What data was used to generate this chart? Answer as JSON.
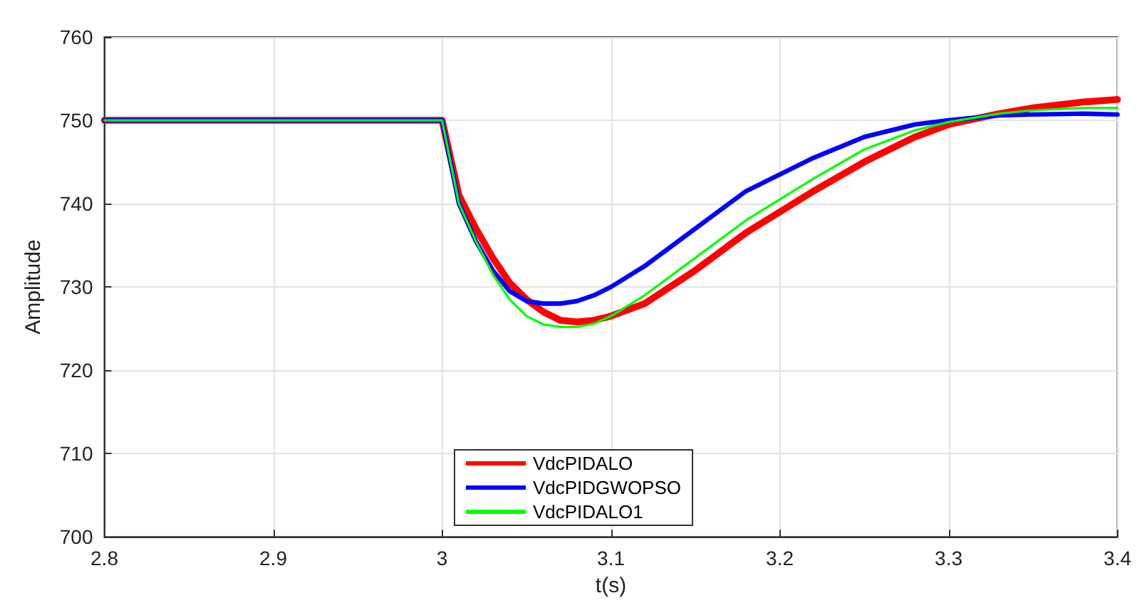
{
  "chart_data": {
    "type": "line",
    "xlabel": "t(s)",
    "ylabel": "Amplitude",
    "x": [
      2.8,
      2.9,
      3.0,
      3.01,
      3.02,
      3.03,
      3.04,
      3.05,
      3.06,
      3.07,
      3.08,
      3.09,
      3.1,
      3.12,
      3.15,
      3.18,
      3.2,
      3.22,
      3.25,
      3.28,
      3.3,
      3.33,
      3.35,
      3.38,
      3.4
    ],
    "series": [
      {
        "name": "VdcPIDALO",
        "color": "#ff0000",
        "values": [
          750,
          750,
          750,
          741,
          737,
          733.5,
          730.5,
          728.5,
          727,
          726,
          725.8,
          726,
          726.5,
          728,
          732,
          736.5,
          739,
          741.5,
          745,
          748,
          749.5,
          750.8,
          751.5,
          752.2,
          752.5
        ]
      },
      {
        "name": "VdcPIDGWOPSO",
        "color": "#0000ff",
        "values": [
          750,
          750,
          750,
          740,
          735.5,
          732,
          729.5,
          728.3,
          728,
          728,
          728.3,
          729,
          730,
          732.5,
          737,
          741.5,
          743.5,
          745.5,
          748,
          749.5,
          750,
          750.6,
          750.7,
          750.8,
          750.7
        ]
      },
      {
        "name": "VdcPIDALO1",
        "color": "#00ff00",
        "values": [
          750,
          750,
          750,
          740,
          735.5,
          731.5,
          728.5,
          726.5,
          725.5,
          725.2,
          725.2,
          725.6,
          726.5,
          729,
          733.5,
          738,
          740.5,
          743,
          746.5,
          748.8,
          749.8,
          750.8,
          751.2,
          751.5,
          751.5
        ]
      }
    ],
    "xlim": [
      2.8,
      3.4
    ],
    "xticks": [
      2.8,
      2.9,
      3,
      3.1,
      3.2,
      3.3,
      3.4
    ],
    "ylim": [
      700,
      760
    ],
    "yticks": [
      700,
      710,
      720,
      730,
      740,
      750,
      760
    ],
    "grid": true,
    "legend": "bottom",
    "marker": "none",
    "line_style": "solid"
  }
}
